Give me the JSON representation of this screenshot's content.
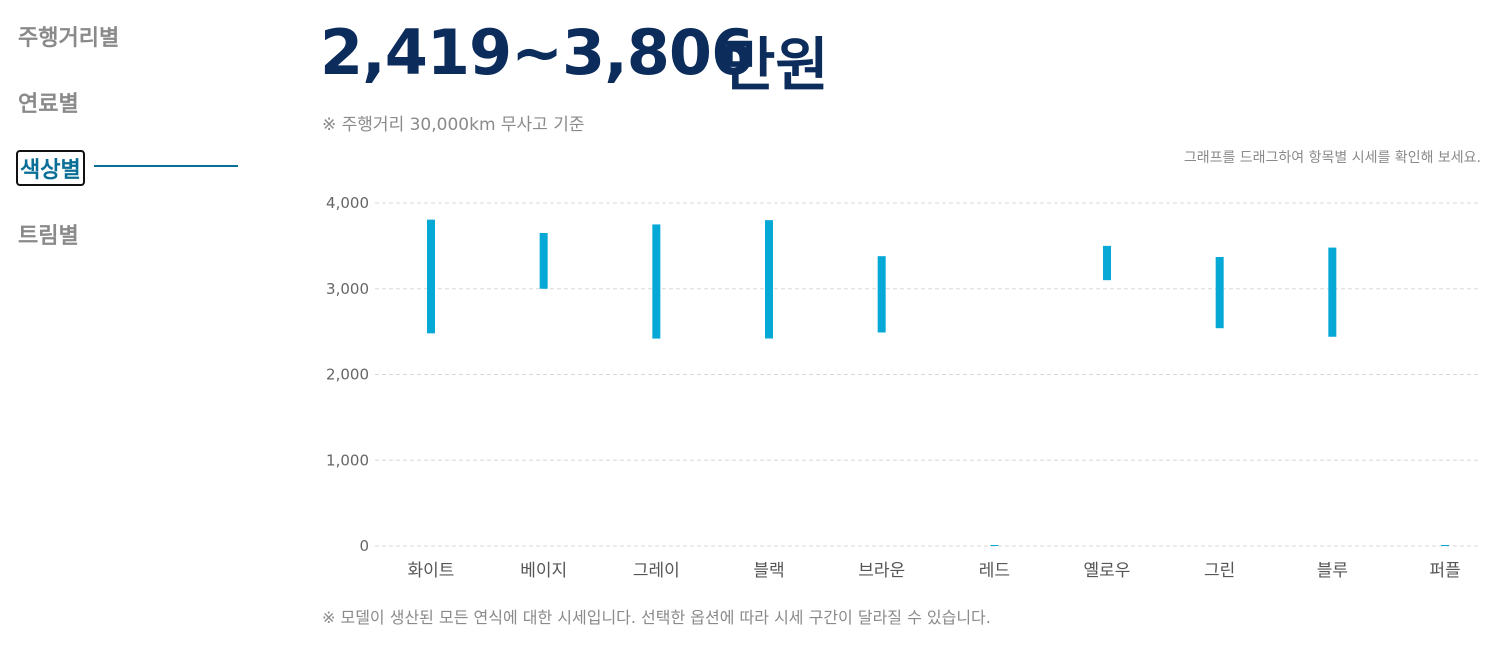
{
  "nav": {
    "items": [
      {
        "label": "주행거리별",
        "active": false
      },
      {
        "label": "연료별",
        "active": false
      },
      {
        "label": "색상별",
        "active": true
      },
      {
        "label": "트림별",
        "active": false
      }
    ]
  },
  "summary": {
    "price_range": "2,419~3,806",
    "unit": "만원",
    "basis_note": "※ 주행거리 30,000km 무사고 기준"
  },
  "hint": "그래프를 드래그하여 항목별 시세를 확인해 보세요.",
  "footer_note": "※ 모델이 생산된 모든 연식에 대한 시세입니다. 선택한 옵션에 따라 시세 구간이 달라질 수 있습니다.",
  "colors": {
    "bar": "#06a8d6",
    "heading": "#0c2c5c",
    "active_nav": "#0a6f96"
  },
  "chart_data": {
    "type": "bar",
    "subtype": "floating-range",
    "categories": [
      "화이트",
      "베이지",
      "그레이",
      "블랙",
      "브라운",
      "레드",
      "옐로우",
      "그린",
      "블루",
      "퍼플"
    ],
    "ranges": [
      [
        2480,
        3806
      ],
      [
        3000,
        3650
      ],
      [
        2419,
        3750
      ],
      [
        2420,
        3800
      ],
      [
        2490,
        3380
      ],
      [
        0,
        0
      ],
      [
        3100,
        3500
      ],
      [
        2540,
        3370
      ],
      [
        2440,
        3480
      ],
      [
        0,
        0
      ]
    ],
    "yticks": [
      "0",
      "1,000",
      "2,000",
      "3,000",
      "4,000"
    ],
    "ytick_values": [
      0,
      1000,
      2000,
      3000,
      4000
    ],
    "ylim": [
      0,
      4000
    ],
    "grid": true,
    "grid_style": "dashed",
    "title": "",
    "xlabel": "",
    "ylabel": ""
  }
}
